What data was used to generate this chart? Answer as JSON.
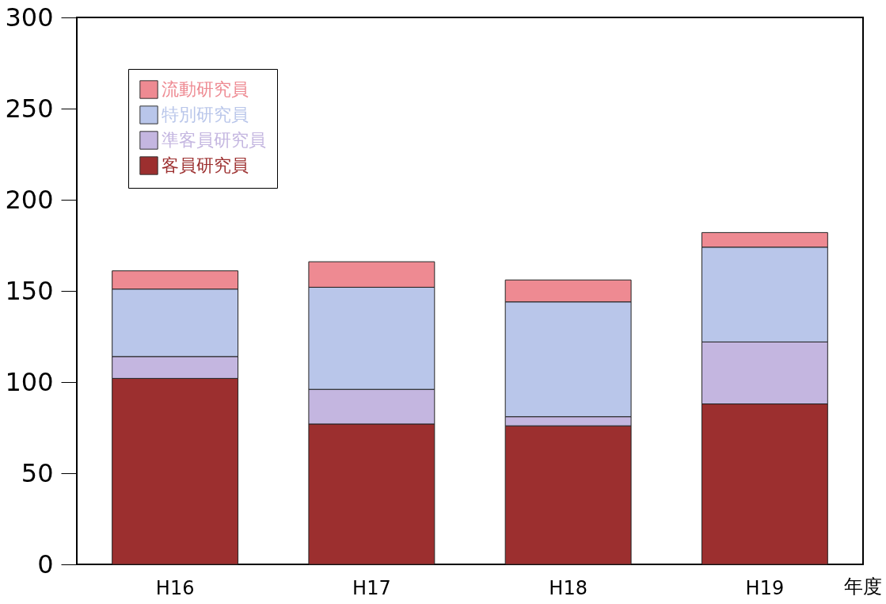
{
  "chart_data": {
    "type": "bar",
    "stacked": true,
    "xlabel": "年度",
    "categories": [
      "H16",
      "H17",
      "H18",
      "H19"
    ],
    "series": [
      {
        "name": "客員研究員",
        "color": "#9c2f2f",
        "values": [
          102,
          77,
          76,
          88
        ]
      },
      {
        "name": "準客員研究員",
        "color": "#c4b6e0",
        "values": [
          12,
          19,
          5,
          34
        ]
      },
      {
        "name": "特別研究員",
        "color": "#b9c6ea",
        "values": [
          37,
          56,
          63,
          52
        ]
      },
      {
        "name": "流動研究員",
        "color": "#ee8a92",
        "values": [
          10,
          14,
          12,
          8
        ]
      }
    ],
    "ylim": [
      0,
      300
    ],
    "yticks": [
      0,
      50,
      100,
      150,
      200,
      250,
      300
    ],
    "grid": false,
    "legend": "top left"
  }
}
